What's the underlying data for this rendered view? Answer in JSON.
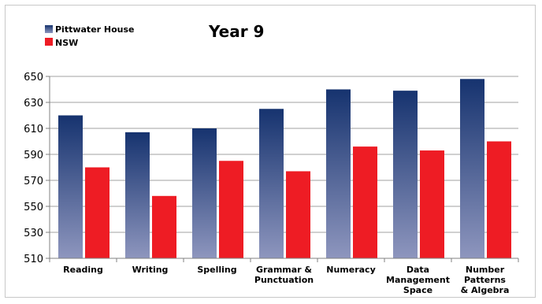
{
  "chart_data": {
    "type": "bar",
    "title": "Year 9",
    "categories": [
      [
        "Reading"
      ],
      [
        "Writing"
      ],
      [
        "Spelling"
      ],
      [
        "Grammar &",
        "Punctuation"
      ],
      [
        "Numeracy"
      ],
      [
        "Data",
        "Management",
        "Space"
      ],
      [
        "Number",
        "Patterns",
        "& Algebra"
      ]
    ],
    "series": [
      {
        "name": "Pittwater House",
        "values": [
          620,
          607,
          610,
          625,
          640,
          639,
          648
        ]
      },
      {
        "name": "NSW",
        "values": [
          580,
          558,
          585,
          577,
          596,
          593,
          600
        ]
      }
    ],
    "yticks": [
      510,
      530,
      550,
      570,
      590,
      610,
      630,
      650
    ],
    "ylim": [
      510,
      650
    ],
    "grid": true,
    "legend_position": "top-left",
    "colors": {
      "series_0_top": "#16336f",
      "series_0_bottom": "#8e96be",
      "series_1": "#ee1c24",
      "grid": "#a0a0a0",
      "axis": "#808080"
    }
  }
}
